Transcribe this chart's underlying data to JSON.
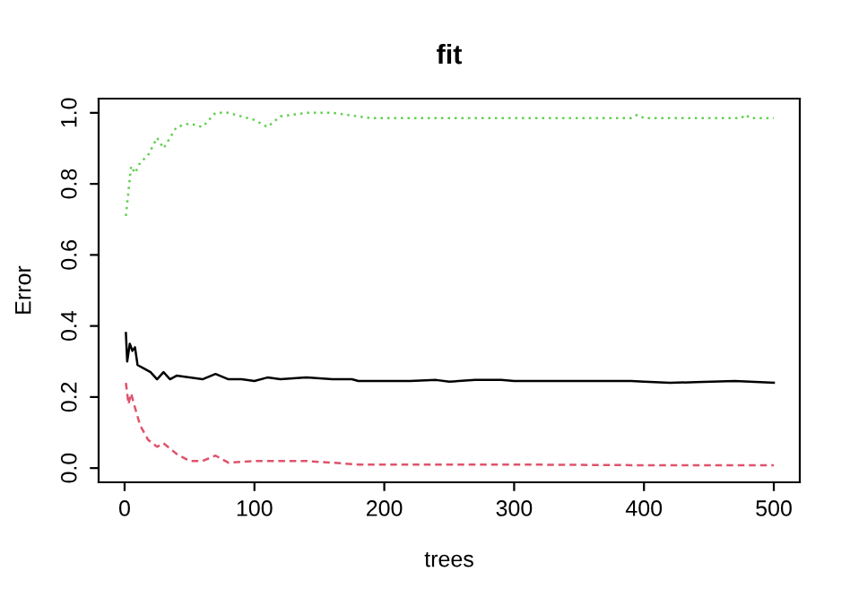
{
  "chart_data": {
    "type": "line",
    "title": "fit",
    "xlabel": "trees",
    "ylabel": "Error",
    "xlim": [
      -20,
      520
    ],
    "ylim": [
      -0.04,
      1.04
    ],
    "xticks": [
      0,
      100,
      200,
      300,
      400,
      500
    ],
    "yticks": [
      {
        "value": 0,
        "label": "0.0"
      },
      {
        "value": 0.2,
        "label": "0.2"
      },
      {
        "value": 0.4,
        "label": "0.4"
      },
      {
        "value": 0.6,
        "label": "0.6"
      },
      {
        "value": 0.8,
        "label": "0.8"
      },
      {
        "value": 1,
        "label": "1.0"
      }
    ],
    "grid": false,
    "legend": false,
    "series": [
      {
        "color": "#000000",
        "line_style": "solid",
        "x": [
          1,
          2,
          4,
          6,
          8,
          10,
          15,
          20,
          25,
          30,
          35,
          40,
          50,
          60,
          70,
          80,
          90,
          100,
          110,
          120,
          140,
          160,
          175,
          180,
          220,
          240,
          250,
          270,
          290,
          300,
          390,
          400,
          420,
          440,
          470,
          500
        ],
        "values": [
          0.38,
          0.3,
          0.35,
          0.33,
          0.34,
          0.29,
          0.28,
          0.27,
          0.25,
          0.27,
          0.25,
          0.26,
          0.255,
          0.25,
          0.265,
          0.25,
          0.25,
          0.245,
          0.255,
          0.25,
          0.255,
          0.25,
          0.25,
          0.245,
          0.245,
          0.248,
          0.243,
          0.248,
          0.248,
          0.245,
          0.245,
          0.243,
          0.24,
          0.242,
          0.245,
          0.24
        ]
      },
      {
        "color": "#df536b",
        "line_style": "dashed",
        "x": [
          1,
          3,
          5,
          8,
          12,
          18,
          25,
          30,
          40,
          50,
          60,
          70,
          80,
          100,
          120,
          140,
          160,
          180,
          200,
          300,
          400,
          500
        ],
        "values": [
          0.24,
          0.18,
          0.21,
          0.17,
          0.12,
          0.08,
          0.06,
          0.07,
          0.04,
          0.02,
          0.02,
          0.035,
          0.015,
          0.02,
          0.02,
          0.02,
          0.015,
          0.01,
          0.01,
          0.01,
          0.008,
          0.008
        ]
      },
      {
        "color": "#61d04f",
        "line_style": "dotted",
        "x": [
          1,
          3,
          5,
          8,
          12,
          18,
          25,
          30,
          40,
          50,
          60,
          70,
          80,
          100,
          110,
          120,
          140,
          160,
          180,
          190,
          300,
          390,
          395,
          400,
          475,
          478,
          482,
          500
        ],
        "values": [
          0.71,
          0.78,
          0.85,
          0.83,
          0.86,
          0.88,
          0.93,
          0.9,
          0.96,
          0.97,
          0.96,
          1.0,
          1.0,
          0.98,
          0.96,
          0.99,
          1.0,
          1.0,
          0.99,
          0.985,
          0.985,
          0.985,
          0.995,
          0.985,
          0.985,
          0.995,
          0.985,
          0.985
        ]
      }
    ]
  }
}
